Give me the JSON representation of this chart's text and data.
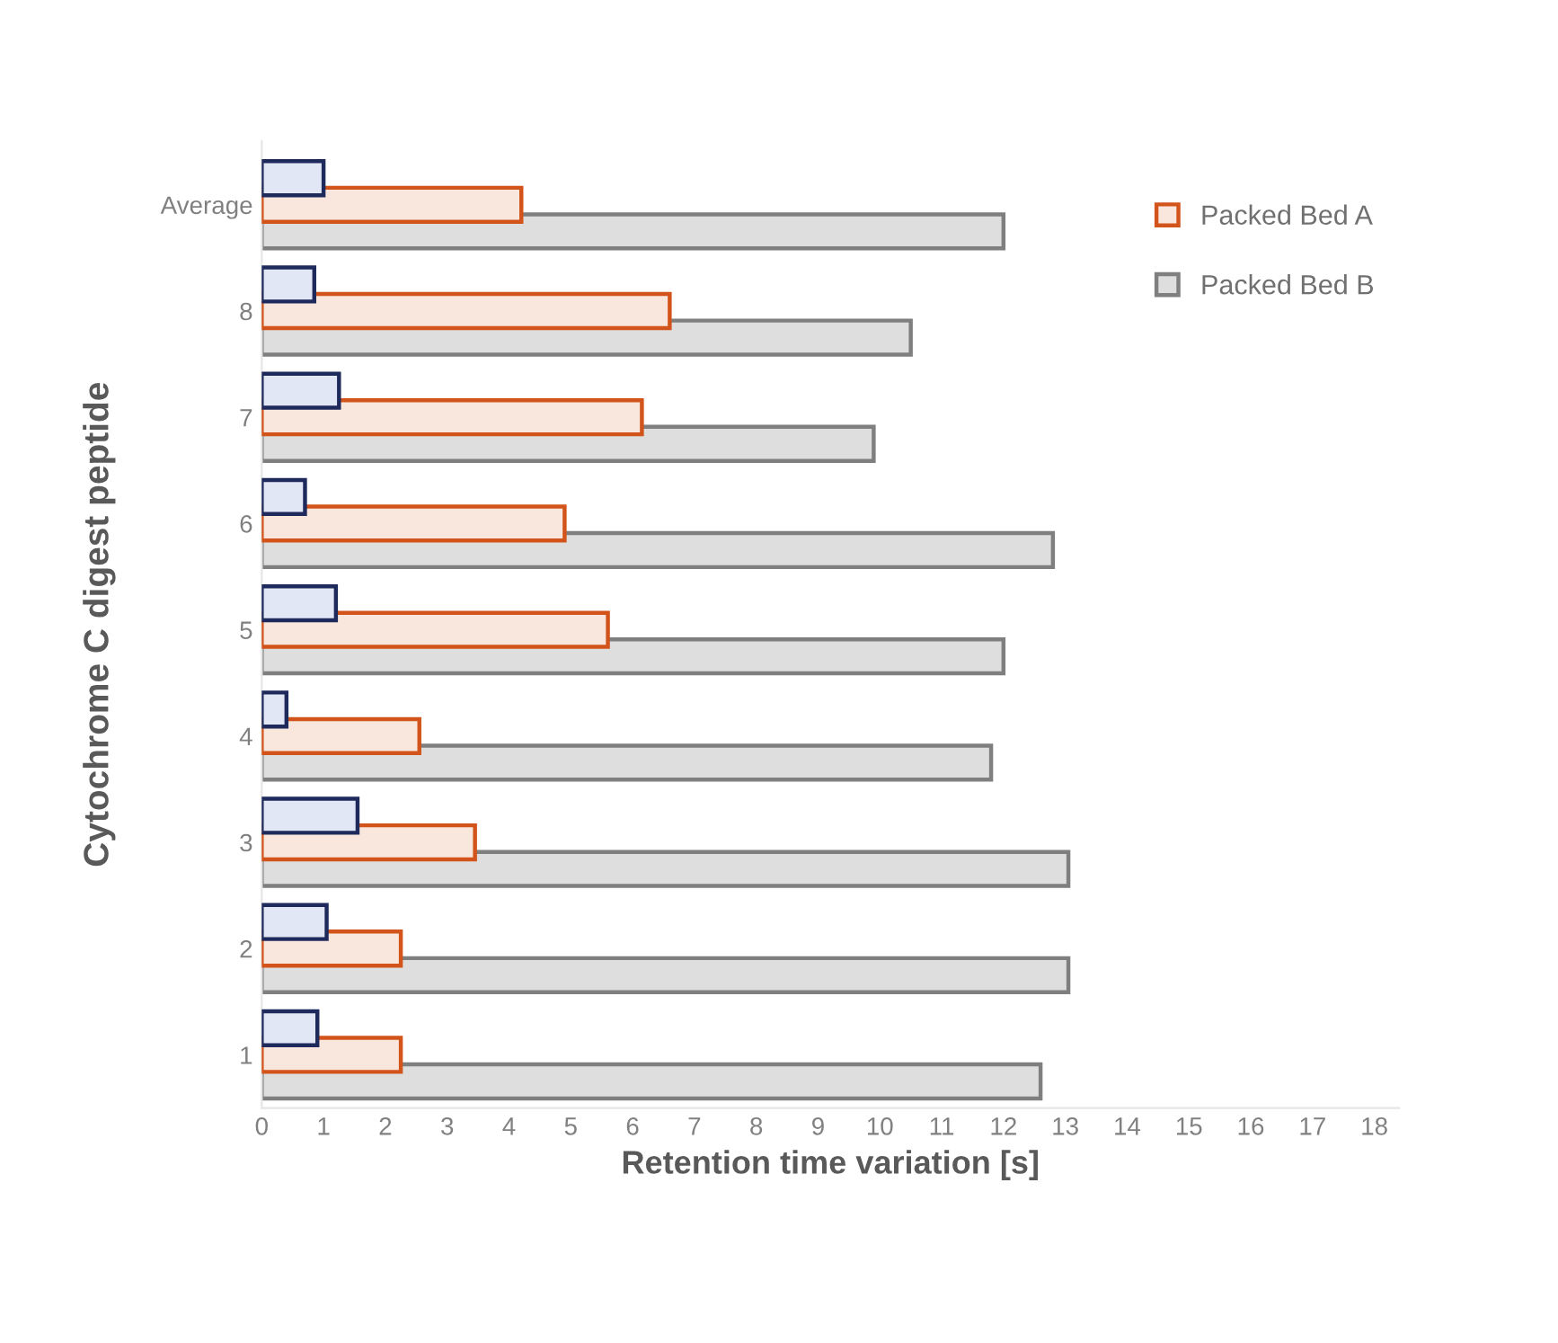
{
  "chart_data": {
    "type": "bar",
    "orientation": "horizontal",
    "xlabel": "Retention time variation [s]",
    "ylabel": "Cytochrome C digest peptide",
    "categories": [
      "Average",
      "8",
      "7",
      "6",
      "5",
      "4",
      "3",
      "2",
      "1"
    ],
    "series": [
      {
        "color": "#1f2a5c",
        "values": [
          1.0,
          0.85,
          1.25,
          0.7,
          1.2,
          0.4,
          1.55,
          1.05,
          0.9
        ]
      },
      {
        "name": "Packed Bed A",
        "color": "#d2541b",
        "values": [
          4.2,
          6.6,
          6.15,
          4.9,
          5.6,
          2.55,
          3.45,
          2.25,
          2.25
        ]
      },
      {
        "name": "Packed Bed B",
        "color": "#7f7f7f",
        "values": [
          12.0,
          10.5,
          9.9,
          12.8,
          12.0,
          11.8,
          13.05,
          13.05,
          12.6
        ]
      }
    ],
    "xlim": [
      0,
      18.4
    ],
    "xticks": [
      0,
      1,
      2,
      3,
      4,
      5,
      6,
      7,
      8,
      9,
      10,
      11,
      12,
      13,
      14,
      15,
      16,
      17,
      18
    ],
    "grid": false,
    "legend": "top right"
  }
}
